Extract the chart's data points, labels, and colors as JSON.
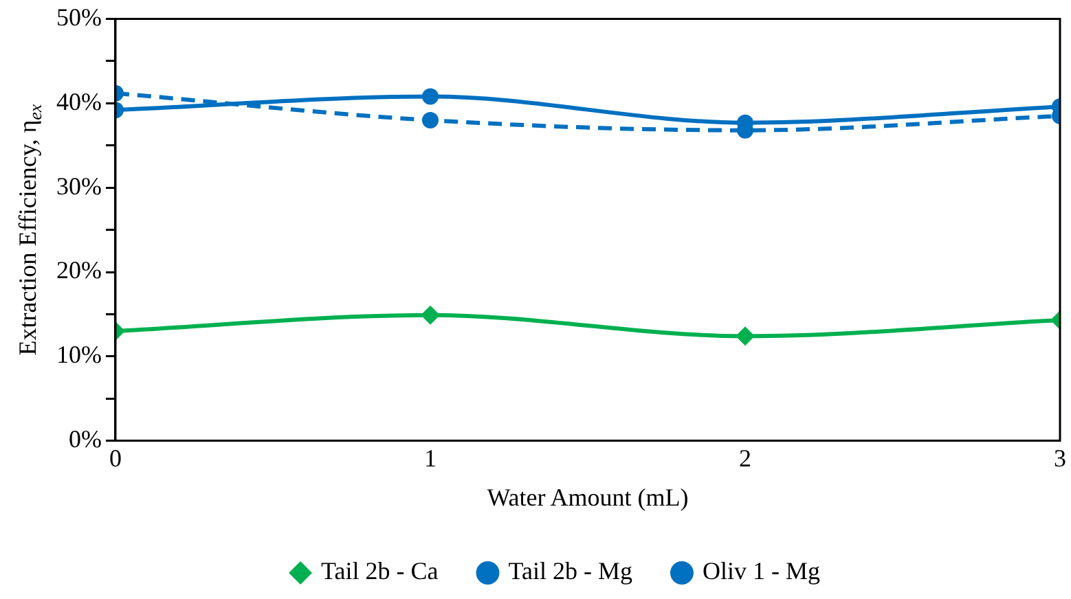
{
  "chart_data": {
    "type": "line",
    "xlabel": "Water Amount (mL)",
    "ylabel": "Extraction Efficiency, η$_{ex}$",
    "x": [
      0,
      1,
      2,
      3
    ],
    "series": [
      {
        "name": "Tail 2b - Ca",
        "color": "#00b050",
        "values": [
          13.0,
          14.9,
          12.4,
          14.3
        ],
        "marker": "diamond",
        "line_style": "solid"
      },
      {
        "name": "Tail 2b - Mg",
        "color": "#0070c0",
        "values": [
          39.2,
          40.8,
          37.7,
          39.6
        ],
        "marker": "circle",
        "line_style": "solid"
      },
      {
        "name": "Oliv 1 - Mg",
        "color": "#0070c0",
        "values": [
          41.2,
          38.0,
          36.8,
          38.5
        ],
        "marker": "circle",
        "line_style": "dashed"
      }
    ],
    "xlim": [
      0,
      3
    ],
    "xticks": [
      0,
      1,
      2,
      3
    ],
    "ylim": [
      0,
      50
    ],
    "yticks": [
      {
        "value": 0,
        "label": "0%"
      },
      {
        "value": 5,
        "label": null
      },
      {
        "value": 10,
        "label": "10%"
      },
      {
        "value": 15,
        "label": null
      },
      {
        "value": 20,
        "label": "20%"
      },
      {
        "value": 25,
        "label": null
      },
      {
        "value": 30,
        "label": "30%"
      },
      {
        "value": 35,
        "label": null
      },
      {
        "value": 40,
        "label": "40%"
      },
      {
        "value": 45,
        "label": null
      },
      {
        "value": 50,
        "label": "50%"
      }
    ],
    "grid": false,
    "legend": "bottom"
  }
}
